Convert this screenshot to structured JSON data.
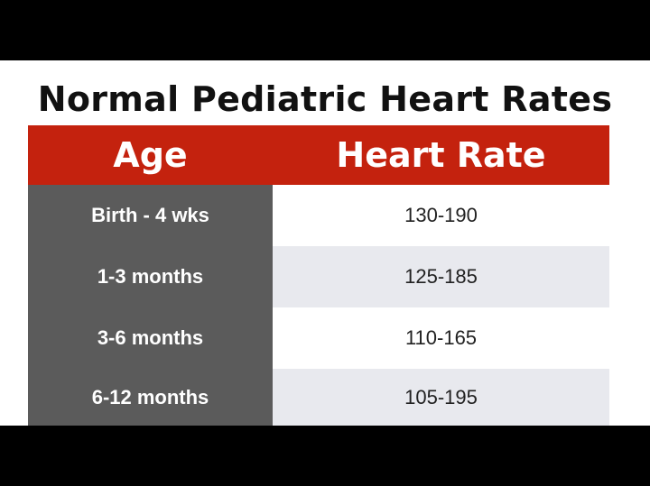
{
  "title": "Normal Pediatric Heart Rates",
  "table": {
    "headers": {
      "age": "Age",
      "heart_rate": "Heart Rate"
    },
    "rows": [
      {
        "age": "Birth - 4 wks",
        "heart_rate": "130-190"
      },
      {
        "age": "1-3 months",
        "heart_rate": "125-185"
      },
      {
        "age": "3-6 months",
        "heart_rate": "110-165"
      },
      {
        "age": "6-12 months",
        "heart_rate": "105-195"
      }
    ]
  },
  "colors": {
    "header_red": "#c4220e",
    "age_column_gray": "#5b5b5b",
    "alt_row_gray": "#e8e9ee"
  }
}
